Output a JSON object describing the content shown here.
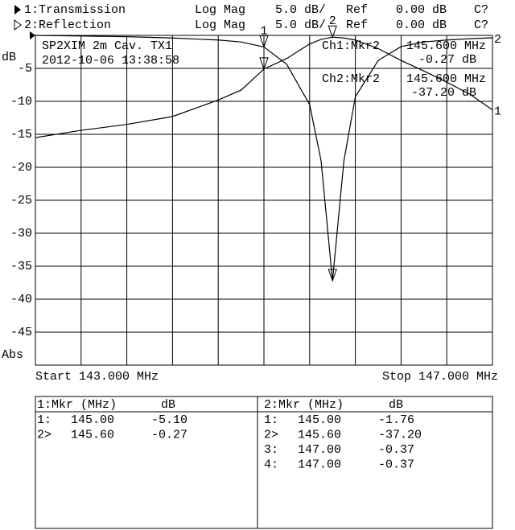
{
  "chart_data": {
    "type": "line",
    "header": [
      [
        "1:Transmission",
        "Log Mag",
        "5.0 dB/",
        "Ref",
        "0.00 dB",
        "C?"
      ],
      [
        "2:Reflection",
        "Log Mag",
        "5.0 dB/",
        "Ref",
        "0.00 dB",
        "C?"
      ]
    ],
    "annotation": [
      "SP2XIM 2m Cav. TX1",
      "2012-10-06 13:38:58"
    ],
    "marker_readouts": [
      [
        "Ch1:Mkr2",
        "145.600 MHz",
        "-0.27 dB"
      ],
      [
        "Ch2:Mkr2",
        "145.600 MHz",
        "-37.20 dB"
      ]
    ],
    "ylabel": "dB",
    "format_label": "Abs",
    "start_label": "Start 143.000 MHz",
    "stop_label": "Stop 147.000 MHz",
    "xlim": [
      143,
      147
    ],
    "ylim": [
      -50,
      0
    ],
    "yticks": [
      -5,
      -10,
      -15,
      -20,
      -25,
      -30,
      -35,
      -40,
      -45
    ],
    "xgrid": [
      143.4,
      143.8,
      144.2,
      144.6,
      145,
      145.4,
      145.8,
      146.2,
      146.6
    ],
    "x": [
      143,
      143.4,
      143.8,
      144.2,
      144.6,
      144.8,
      145,
      145.2,
      145.4,
      145.5,
      145.6,
      145.7,
      145.8,
      146,
      146.2,
      146.4,
      146.6,
      146.8,
      147
    ],
    "series": [
      {
        "name": "1",
        "color": "#000000",
        "values": [
          -15.5,
          -14.4,
          -13.5,
          -12.3,
          -9.8,
          -8.3,
          -5.1,
          -3.5,
          -1.3,
          -0.6,
          -0.27,
          -0.4,
          -0.7,
          -2.0,
          -3.8,
          -5.4,
          -7.1,
          -8.9,
          -11.3
        ]
      },
      {
        "name": "2",
        "color": "#000000",
        "values": [
          0,
          -0.1,
          -0.2,
          -0.4,
          -0.7,
          -1.0,
          -1.76,
          -4.4,
          -10.5,
          -19,
          -37.2,
          -19,
          -9.3,
          -3.8,
          -1.7,
          -1.0,
          -0.7,
          -0.5,
          -0.37
        ]
      }
    ],
    "markers": [
      {
        "label": "1",
        "x": 145,
        "y": [
          -5.1,
          -1.76
        ]
      },
      {
        "label": "2",
        "x": 145.6,
        "y": [
          -0.27,
          -37.2
        ]
      }
    ],
    "tables": [
      {
        "header": [
          "1:Mkr (MHz)",
          "dB"
        ],
        "rows": [
          [
            "1:",
            "145.00",
            "-5.10"
          ],
          [
            "2>",
            "145.60",
            "-0.27"
          ]
        ]
      },
      {
        "header": [
          "2:Mkr (MHz)",
          "dB"
        ],
        "rows": [
          [
            "1:",
            "145.00",
            "-1.76"
          ],
          [
            "2>",
            "145.60",
            "-37.20"
          ],
          [
            "3:",
            "147.00",
            "-0.37"
          ],
          [
            "4:",
            "147.00",
            "-0.37"
          ]
        ]
      }
    ]
  }
}
